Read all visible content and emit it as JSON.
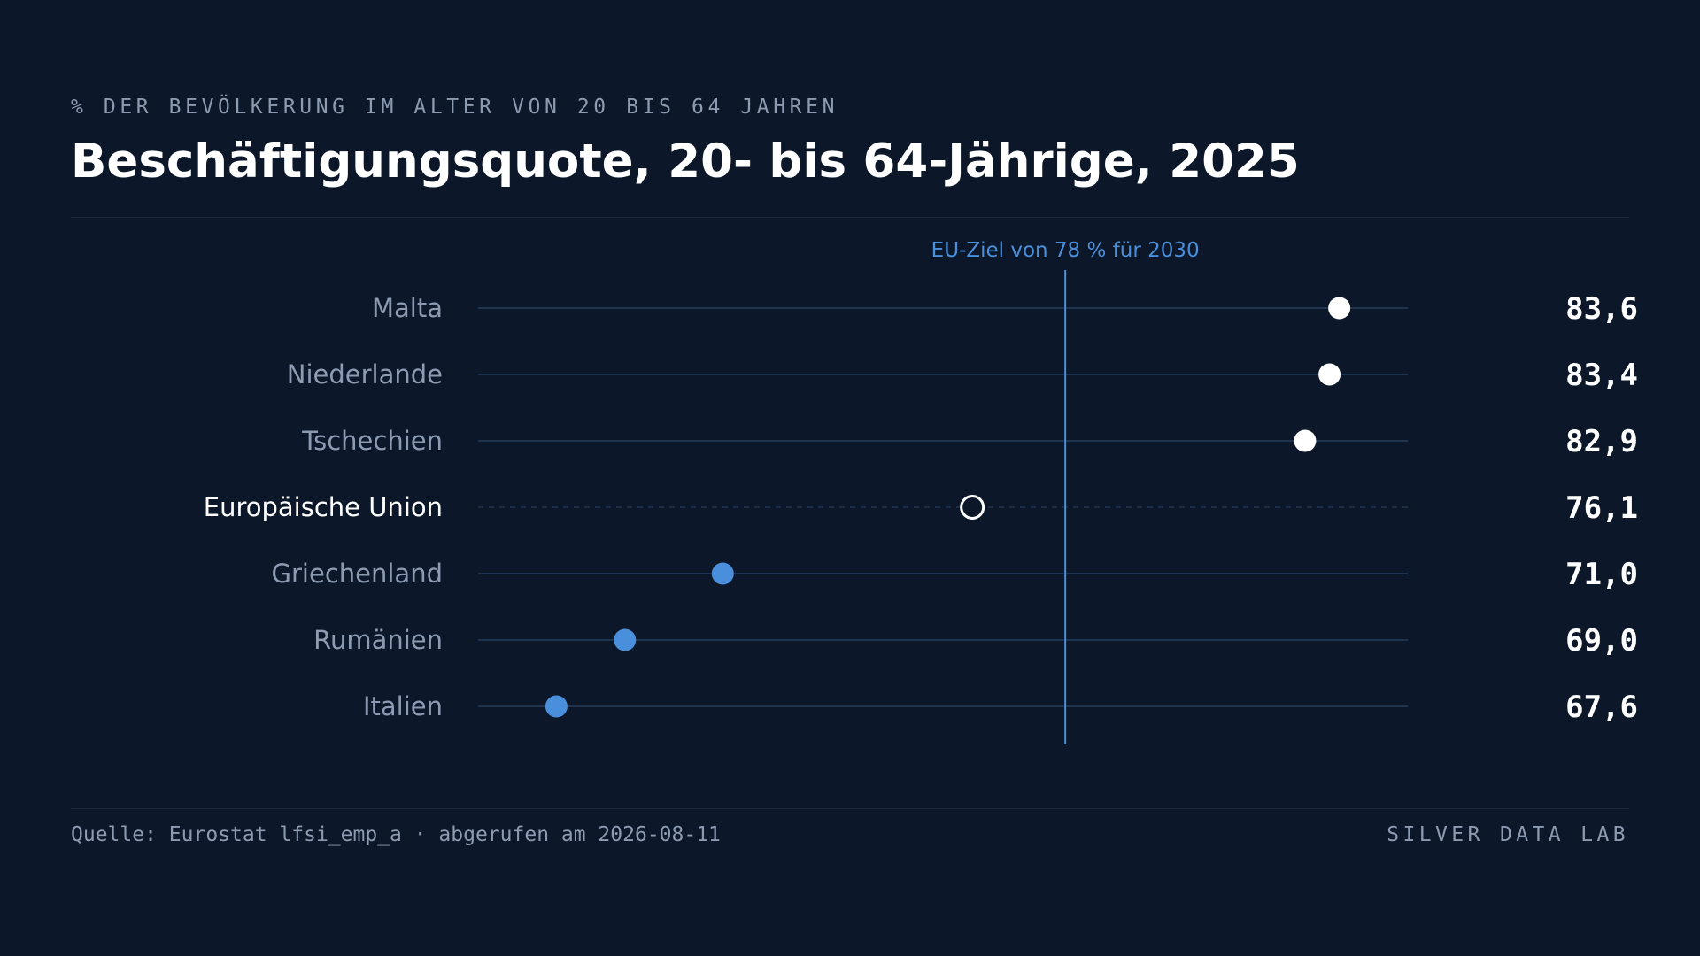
{
  "header": {
    "kicker": "% DER BEVÖLKERUNG IM ALTER VON 20 BIS 64 JAHREN",
    "title": "Beschäftigungsquote, 20- bis 64-Jährige, 2025"
  },
  "footer": {
    "source": "Quelle: Eurostat lfsi_emp_a · abgerufen am 2026-08-11",
    "brand": "SILVER DATA LAB"
  },
  "colors": {
    "background": "#0c1829",
    "above_target": "#ffffff",
    "below_target": "#4a8fdb",
    "aggregate": "#ffffff",
    "target_line": "#4a8fdb",
    "track": "#1e3350",
    "label_muted": "#8d9bb2",
    "label_highlight": "#ffffff"
  },
  "chart_data": {
    "type": "dot",
    "categories": [
      "Malta",
      "Niederlande",
      "Tschechien",
      "Europäische Union",
      "Griechenland",
      "Rumänien",
      "Italien"
    ],
    "values": [
      83.6,
      83.4,
      82.9,
      76.1,
      71.0,
      69.0,
      67.6
    ],
    "value_labels": [
      "83,6",
      "83,4",
      "82,9",
      "76,1",
      "71,0",
      "69,0",
      "67,6"
    ],
    "aggregate_category": "Europäische Union",
    "xlim": [
      66.0,
      85.0
    ],
    "reference_line": {
      "value": 78,
      "label": "EU-Ziel von 78 % für 2030"
    },
    "grid": false,
    "legend": "none"
  }
}
